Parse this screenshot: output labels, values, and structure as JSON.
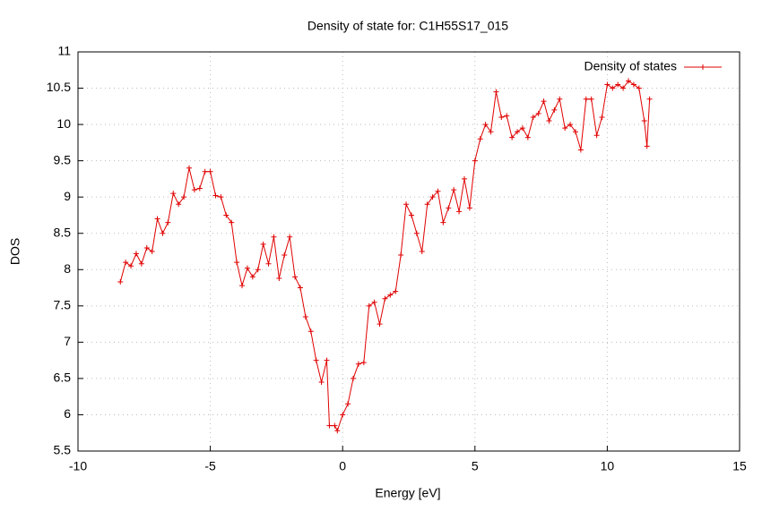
{
  "chart_data": {
    "type": "line",
    "title": "Density of state for: C1H55S17_015",
    "x_label": "Energy [eV]",
    "y_label": "DOS",
    "x": [
      -8.4,
      -8.2,
      -8.0,
      -7.8,
      -7.6,
      -7.4,
      -7.2,
      -7.0,
      -6.8,
      -6.6,
      -6.4,
      -6.2,
      -6.0,
      -5.8,
      -5.6,
      -5.4,
      -5.2,
      -5.0,
      -4.8,
      -4.6,
      -4.4,
      -4.2,
      -4.0,
      -3.8,
      -3.6,
      -3.4,
      -3.2,
      -3.0,
      -2.8,
      -2.6,
      -2.4,
      -2.2,
      -2.0,
      -1.8,
      -1.6,
      -1.4,
      -1.2,
      -1.0,
      -0.8,
      -0.6,
      -0.5,
      -0.3,
      -0.2,
      0.0,
      0.2,
      0.4,
      0.6,
      0.8,
      1.0,
      1.2,
      1.4,
      1.6,
      1.8,
      2.0,
      2.2,
      2.4,
      2.6,
      2.8,
      3.0,
      3.2,
      3.4,
      3.6,
      3.8,
      4.0,
      4.2,
      4.4,
      4.6,
      4.8,
      5.0,
      5.2,
      5.4,
      5.6,
      5.8,
      6.0,
      6.2,
      6.4,
      6.6,
      6.8,
      7.0,
      7.2,
      7.4,
      7.6,
      7.8,
      8.0,
      8.2,
      8.4,
      8.6,
      8.8,
      9.0,
      9.2,
      9.4,
      9.6,
      9.8,
      10.0,
      10.2,
      10.4,
      10.6,
      10.8,
      11.0,
      11.2,
      11.4,
      11.5,
      11.6
    ],
    "series": [
      {
        "name": "Density of states",
        "color": "#e00000",
        "values": [
          7.83,
          8.1,
          8.05,
          8.22,
          8.08,
          8.3,
          8.25,
          8.7,
          8.5,
          8.65,
          9.05,
          8.9,
          9.0,
          9.4,
          9.1,
          9.12,
          9.35,
          9.35,
          9.02,
          9.0,
          8.75,
          8.65,
          8.1,
          7.78,
          8.02,
          7.9,
          8.0,
          8.35,
          8.08,
          8.45,
          7.88,
          8.2,
          8.45,
          7.9,
          7.75,
          7.35,
          7.15,
          6.75,
          6.45,
          6.75,
          5.85,
          5.85,
          5.78,
          6.0,
          6.15,
          6.5,
          6.7,
          6.72,
          7.5,
          7.55,
          7.25,
          7.6,
          7.65,
          7.7,
          8.2,
          8.9,
          8.75,
          8.5,
          8.25,
          8.9,
          9.0,
          9.08,
          8.65,
          8.85,
          9.1,
          8.8,
          9.25,
          8.85,
          9.5,
          9.8,
          10.0,
          9.9,
          10.45,
          10.1,
          10.12,
          9.82,
          9.9,
          9.95,
          9.82,
          10.1,
          10.15,
          10.32,
          10.05,
          10.2,
          10.35,
          9.95,
          10.0,
          9.9,
          9.65,
          10.35,
          10.35,
          9.85,
          10.1,
          10.55,
          10.5,
          10.55,
          10.5,
          10.6,
          10.55,
          10.5,
          10.05,
          9.7,
          10.35
        ]
      }
    ],
    "xlim": [
      -10,
      15
    ],
    "xticks": [
      -10,
      -5,
      0,
      5,
      10,
      15
    ],
    "ylim": [
      5.5,
      11
    ],
    "yticks": [
      5.5,
      6,
      6.5,
      7,
      7.5,
      8,
      8.5,
      9,
      9.5,
      10,
      10.5,
      11
    ],
    "grid": true,
    "legend": "top-right"
  }
}
